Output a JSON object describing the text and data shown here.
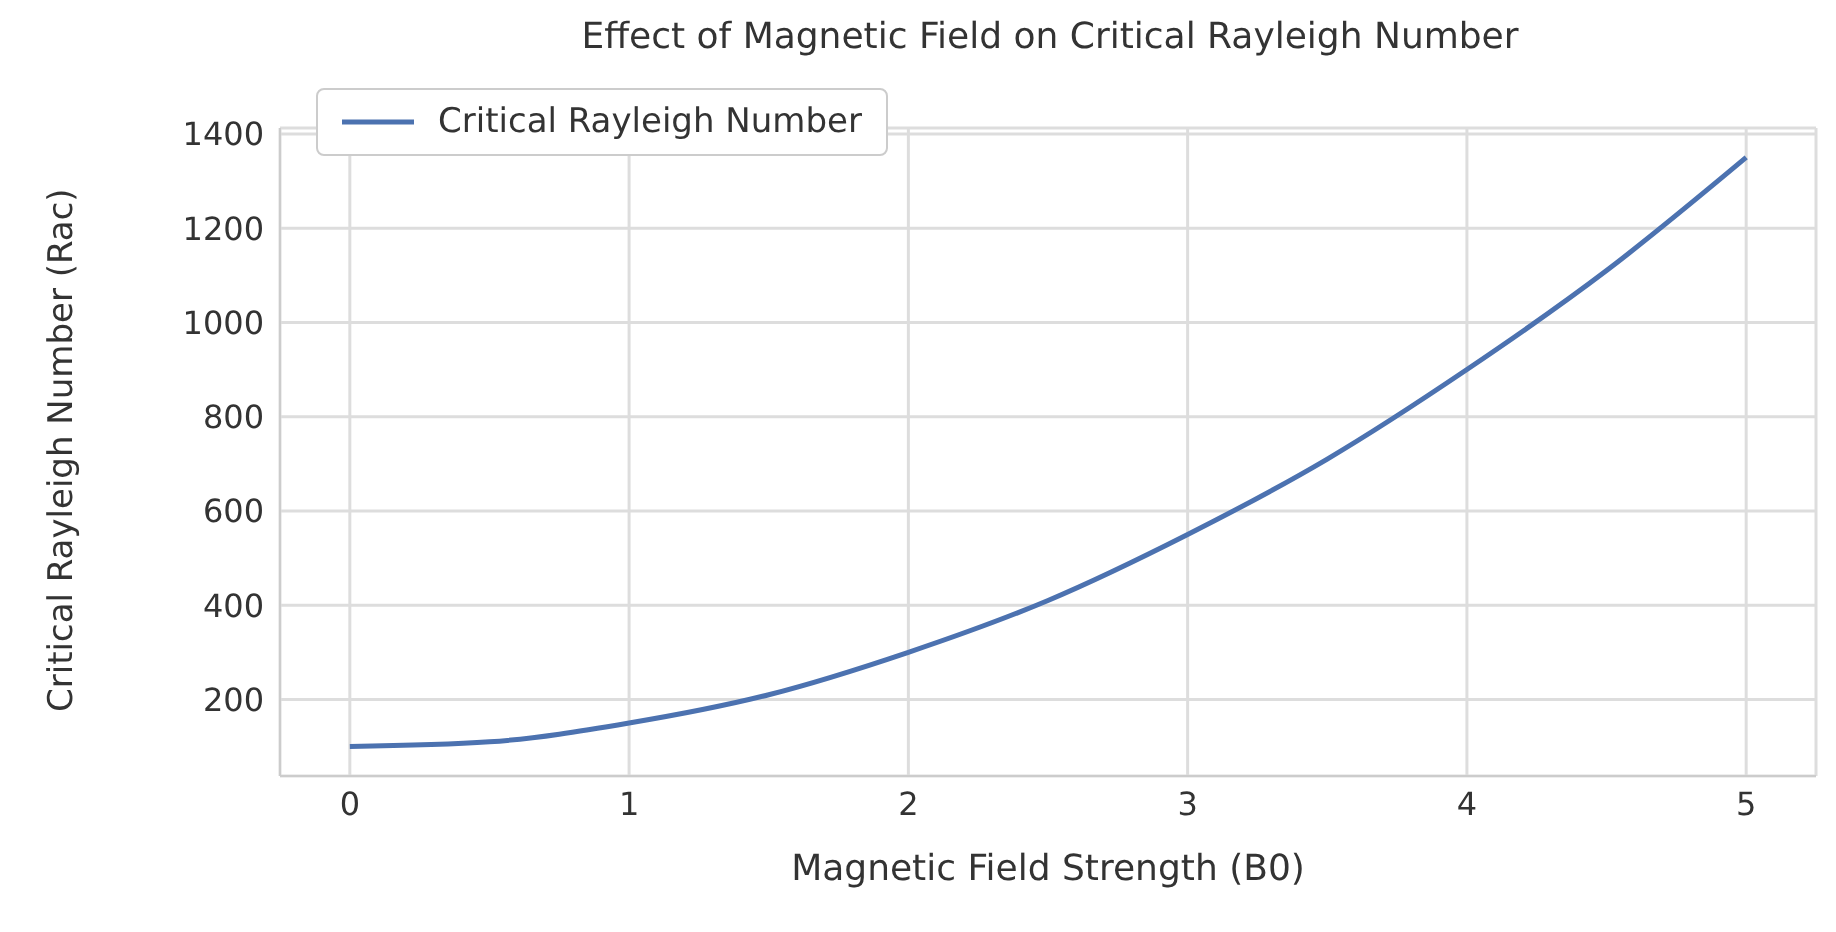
{
  "chart_data": {
    "type": "line",
    "title": "Effect of Magnetic Field on Critical Rayleigh Number",
    "xlabel": "Magnetic Field Strength (B0)",
    "ylabel": "Critical Rayleigh Number (Rac)",
    "x": [
      0,
      0.5,
      1,
      1.5,
      2,
      2.5,
      3,
      3.5,
      4,
      4.5,
      5
    ],
    "series": [
      {
        "name": "Critical Rayleigh Number",
        "color": "#4c72b0",
        "values": [
          100,
          110,
          150,
          210,
          300,
          410,
          550,
          710,
          900,
          1110,
          1350
        ]
      }
    ],
    "xlim": [
      -0.25,
      5.25
    ],
    "xticks": [
      0,
      1,
      2,
      3,
      4,
      5
    ],
    "ylim": [
      37.5,
      1412.5
    ],
    "yticks": [
      200,
      400,
      600,
      800,
      1000,
      1200,
      1400
    ],
    "grid": true,
    "legend": "top left",
    "marker": "none",
    "line_style": "solid"
  }
}
